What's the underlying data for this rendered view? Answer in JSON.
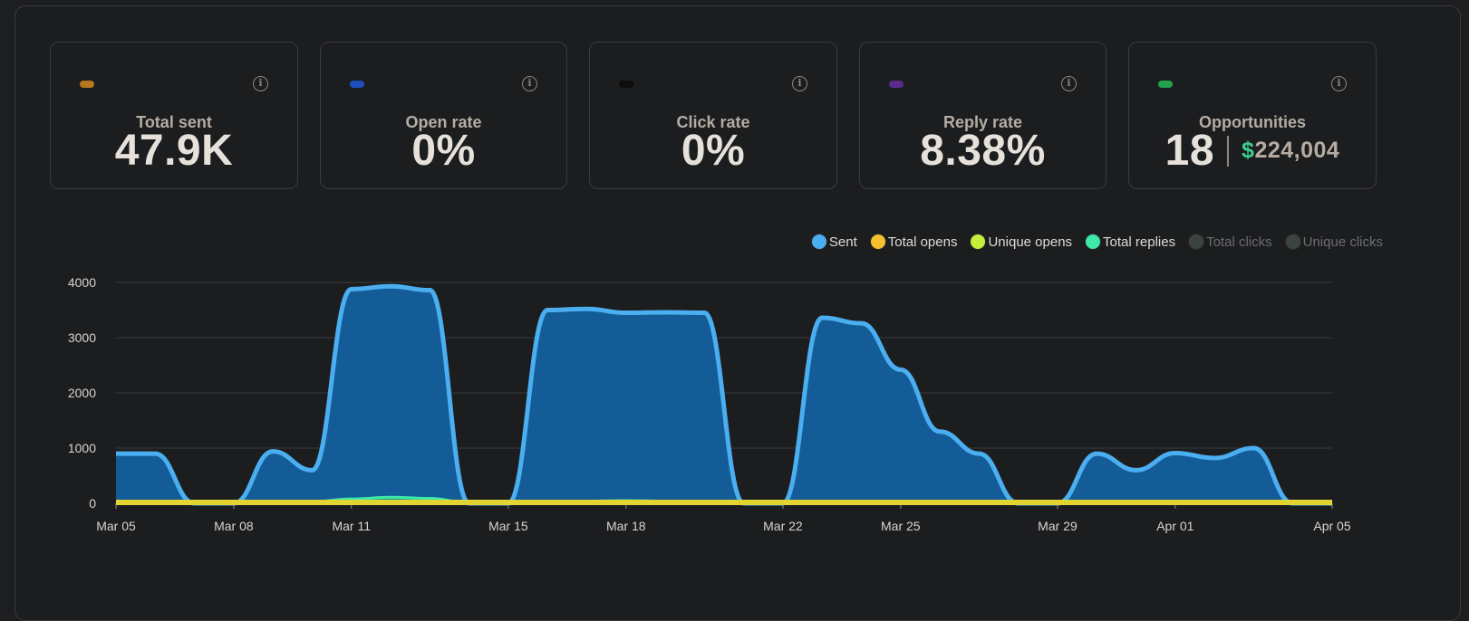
{
  "stats": [
    {
      "label": "Total sent",
      "value": "47.9K",
      "dot": "#b7771f"
    },
    {
      "label": "Open rate",
      "value": "0%",
      "dot": "#1f4fbf"
    },
    {
      "label": "Click rate",
      "value": "0%",
      "dot": "#0d0d0d"
    },
    {
      "label": "Reply rate",
      "value": "8.38%",
      "dot": "#5a2a8c"
    },
    {
      "label": "Opportunities",
      "value": "18",
      "money_symbol": "$",
      "money_value": "224,004",
      "dot": "#22a24a"
    }
  ],
  "info_icon": "i",
  "legend": [
    {
      "label": "Sent",
      "color": "#4aaef0",
      "active": true
    },
    {
      "label": "Total opens",
      "color": "#f5c12e",
      "active": true
    },
    {
      "label": "Unique opens",
      "color": "#c5f03a",
      "active": true
    },
    {
      "label": "Total replies",
      "color": "#3ee8a8",
      "active": true
    },
    {
      "label": "Total clicks",
      "color": "#3c4442",
      "active": false
    },
    {
      "label": "Unique clicks",
      "color": "#3c4442",
      "active": false
    }
  ],
  "chart_data": {
    "type": "area",
    "x": [
      "Mar 05",
      "Mar 06",
      "Mar 07",
      "Mar 08",
      "Mar 09",
      "Mar 10",
      "Mar 11",
      "Mar 12",
      "Mar 13",
      "Mar 14",
      "Mar 15",
      "Mar 16",
      "Mar 17",
      "Mar 18",
      "Mar 19",
      "Mar 20",
      "Mar 21",
      "Mar 22",
      "Mar 23",
      "Mar 24",
      "Mar 25",
      "Mar 26",
      "Mar 27",
      "Mar 28",
      "Mar 29",
      "Mar 30",
      "Mar 31",
      "Apr 01",
      "Apr 02",
      "Apr 03",
      "Apr 04",
      "Apr 05"
    ],
    "x_tick_labels": [
      "Mar 05",
      "Mar 08",
      "Mar 11",
      "Mar 15",
      "Mar 18",
      "Mar 22",
      "Mar 25",
      "Mar 29",
      "Apr 01",
      "Apr 05"
    ],
    "y_ticks": [
      0,
      1000,
      2000,
      3000,
      4000
    ],
    "ylim": [
      0,
      4000
    ],
    "series": [
      {
        "name": "Sent",
        "values": [
          900,
          900,
          0,
          0,
          940,
          600,
          3880,
          3930,
          3860,
          0,
          0,
          3500,
          3520,
          3450,
          3460,
          3450,
          0,
          0,
          3360,
          3260,
          2420,
          1300,
          900,
          0,
          0,
          900,
          600,
          910,
          820,
          1000,
          0,
          0
        ]
      },
      {
        "name": "Total replies",
        "values": [
          30,
          40,
          10,
          10,
          30,
          30,
          80,
          110,
          90,
          10,
          10,
          40,
          40,
          50,
          40,
          40,
          10,
          10,
          40,
          40,
          30,
          20,
          20,
          10,
          10,
          30,
          20,
          30,
          30,
          30,
          10,
          10
        ]
      },
      {
        "name": "Total opens",
        "values": [
          0,
          0,
          0,
          0,
          0,
          0,
          0,
          0,
          0,
          0,
          0,
          0,
          0,
          0,
          0,
          0,
          0,
          0,
          0,
          0,
          0,
          0,
          0,
          0,
          0,
          0,
          0,
          0,
          0,
          0,
          0,
          0
        ]
      },
      {
        "name": "Unique opens",
        "values": [
          0,
          0,
          0,
          0,
          0,
          0,
          0,
          0,
          0,
          0,
          0,
          0,
          0,
          0,
          0,
          0,
          0,
          0,
          0,
          0,
          0,
          0,
          0,
          0,
          0,
          0,
          0,
          0,
          0,
          0,
          0,
          0
        ]
      }
    ],
    "grid": true,
    "legend_position": "top-right"
  }
}
